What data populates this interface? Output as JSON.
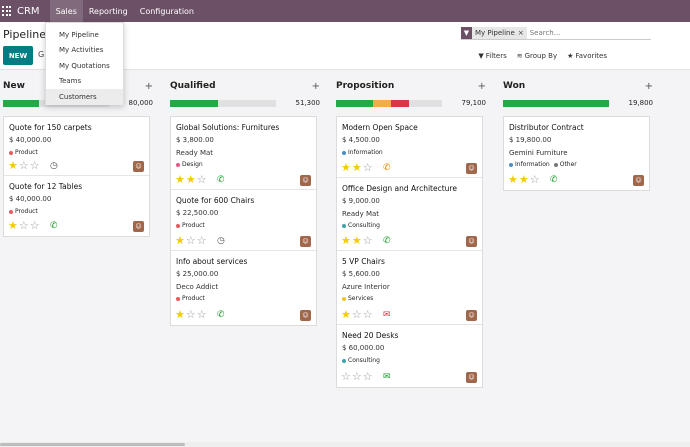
{
  "navbar": {
    "brand": "CRM",
    "menus": [
      "Sales",
      "Reporting",
      "Configuration"
    ]
  },
  "sales_menu": {
    "items": [
      "My Pipeline",
      "My Activities",
      "My Quotations",
      "Teams",
      "Customers"
    ],
    "hovered": "Customers"
  },
  "control": {
    "breadcrumb": "Pipeline",
    "new_label": "NEW",
    "generate_label": "Gl",
    "search": {
      "facet_label": "My Pipeline",
      "facet_remove": "×",
      "placeholder": "Search..."
    },
    "filters_label": "Filters",
    "groupby_label": "Group By",
    "favorites_label": "Favorites"
  },
  "colors": {
    "brand": "#6c5066",
    "primary": "#017e84",
    "won": "#28a745",
    "warning": "#f0ad4e",
    "danger": "#dc3545"
  },
  "columns": [
    {
      "name": "New",
      "amount": "80,000",
      "progress": [
        {
          "color": "#28a745",
          "percent": 34
        }
      ],
      "cards": [
        {
          "title": "Quote for 150 carpets",
          "amount": "$ 40,000.00",
          "company": "",
          "tags": [
            {
              "label": "Product",
              "color": "#e85b5b"
            }
          ],
          "stars": 1,
          "activity": "clock"
        },
        {
          "title": "Quote for 12 Tables",
          "amount": "$ 40,000.00",
          "company": "",
          "tags": [
            {
              "label": "Product",
              "color": "#e85b5b"
            }
          ],
          "stars": 1,
          "activity": "phone"
        }
      ]
    },
    {
      "name": "Qualified",
      "amount": "51,300",
      "progress": [
        {
          "color": "#28a745",
          "percent": 45
        }
      ],
      "cards": [
        {
          "title": "Global Solutions: Furnitures",
          "amount": "$ 3,800.00",
          "company": "Ready Mat",
          "tags": [
            {
              "label": "Design",
              "color": "#e6568a"
            }
          ],
          "stars": 2,
          "activity": "phone"
        },
        {
          "title": "Quote for 600 Chairs",
          "amount": "$ 22,500.00",
          "company": "",
          "tags": [
            {
              "label": "Product",
              "color": "#e85b5b"
            }
          ],
          "stars": 1,
          "activity": "clock"
        },
        {
          "title": "Info about services",
          "amount": "$ 25,000.00",
          "company": "Deco Addict",
          "tags": [
            {
              "label": "Product",
              "color": "#e85b5b"
            }
          ],
          "stars": 1,
          "activity": "phone"
        }
      ]
    },
    {
      "name": "Proposition",
      "amount": "79,100",
      "progress": [
        {
          "color": "#28a745",
          "percent": 35
        },
        {
          "color": "#f0ad4e",
          "percent": 17
        },
        {
          "color": "#dc3545",
          "percent": 17
        }
      ],
      "cards": [
        {
          "title": "Modern Open Space",
          "amount": "$ 4,500.00",
          "company": "",
          "tags": [
            {
              "label": "Information",
              "color": "#4a90c8"
            }
          ],
          "stars": 2,
          "activity": "phone-warn"
        },
        {
          "title": "Office Design and Architecture",
          "amount": "$ 9,000.00",
          "company": "Ready Mat",
          "tags": [
            {
              "label": "Consulting",
              "color": "#3fa3a8"
            }
          ],
          "stars": 2,
          "activity": "phone"
        },
        {
          "title": "5 VP Chairs",
          "amount": "$ 5,600.00",
          "company": "Azure Interior",
          "tags": [
            {
              "label": "Services",
              "color": "#f0c419"
            }
          ],
          "stars": 1,
          "activity": "email-red"
        },
        {
          "title": "Need 20 Desks",
          "amount": "$ 60,000.00",
          "company": "",
          "tags": [
            {
              "label": "Consulting",
              "color": "#3fa3a8"
            }
          ],
          "stars": 0,
          "activity": "email-green"
        }
      ]
    },
    {
      "name": "Won",
      "amount": "19,800",
      "progress": [
        {
          "color": "#28a745",
          "percent": 100
        }
      ],
      "cards": [
        {
          "title": "Distributor Contract",
          "amount": "$ 19,800.00",
          "company": "Gemini Furniture",
          "tags": [
            {
              "label": "Information",
              "color": "#4a90c8"
            },
            {
              "label": "Other",
              "color": "#777777"
            }
          ],
          "stars": 2,
          "activity": "phone"
        }
      ]
    }
  ],
  "icons": {
    "star": "star-icon",
    "clock": "clock-icon",
    "phone": "phone-icon",
    "email": "envelope-icon",
    "avatar": "avatar"
  }
}
